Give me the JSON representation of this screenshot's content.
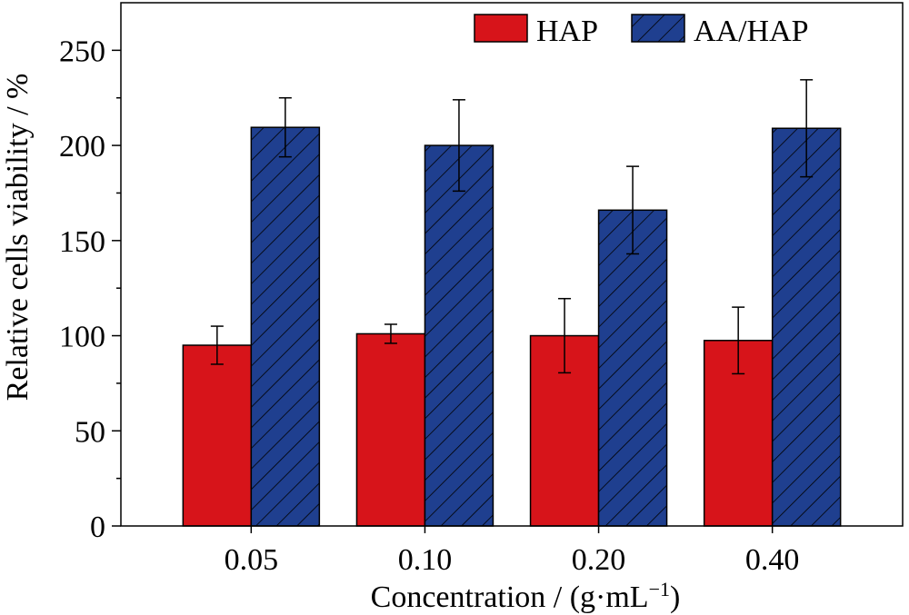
{
  "chart_data": {
    "type": "bar",
    "title": "",
    "xlabel": "Concentration / (g·mL",
    "xlabel_superscript": "−1",
    "xlabel_suffix": ")",
    "ylabel": "Relative cells viability / %",
    "categories": [
      "0.05",
      "0.10",
      "0.20",
      "0.40"
    ],
    "ylim": [
      0,
      275
    ],
    "yticks": [
      0,
      50,
      100,
      150,
      200,
      250
    ],
    "yticks_labels": [
      "0",
      "50",
      "100",
      "150",
      "200",
      "250"
    ],
    "grid": false,
    "legend_position": "top-right",
    "series": [
      {
        "name": "HAP",
        "color": "#d7141a",
        "pattern": "solid",
        "values": [
          95,
          101,
          100,
          97.5
        ],
        "errors": [
          10,
          5,
          19.5,
          17.5
        ]
      },
      {
        "name": "AA/HAP",
        "color": "#1f3f8f",
        "pattern": "diagonal-hatch",
        "values": [
          209.5,
          200,
          166,
          209
        ],
        "errors": [
          15.5,
          24,
          23,
          25.5
        ]
      }
    ]
  }
}
